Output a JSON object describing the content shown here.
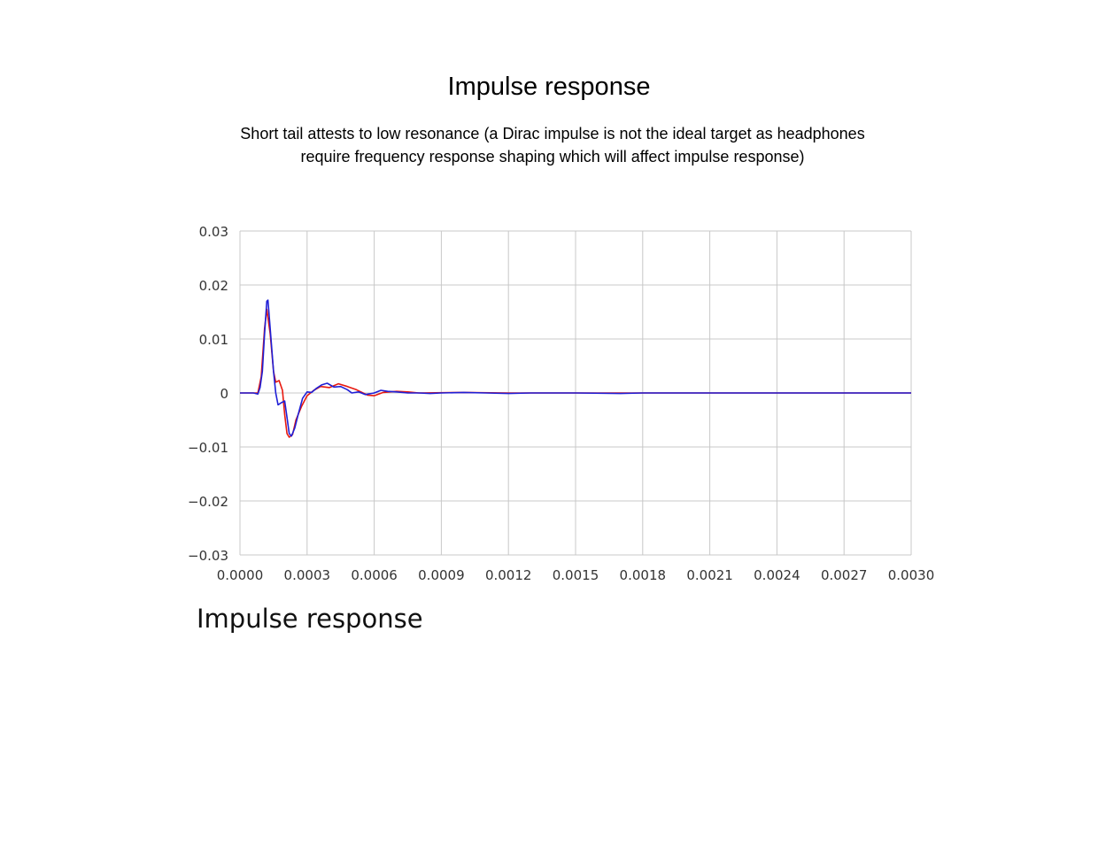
{
  "page": {
    "title": "Impulse response",
    "subtitle": "Short tail attests to low resonance (a Dirac impulse is not the ideal target as headphones require frequency response shaping which will affect impulse response)"
  },
  "chart_data": {
    "type": "line",
    "title": "Impulse response",
    "xlabel": "",
    "ylabel": "",
    "xlim": [
      0,
      0.003
    ],
    "ylim": [
      -0.03,
      0.03
    ],
    "x_ticks": [
      "0.0000",
      "0.0003",
      "0.0006",
      "0.0009",
      "0.0012",
      "0.0015",
      "0.0018",
      "0.0021",
      "0.0024",
      "0.0027",
      "0.0030"
    ],
    "y_ticks": [
      "0.03",
      "0.02",
      "0.01",
      "0",
      "−0.01",
      "−0.02",
      "−0.03"
    ],
    "grid": true,
    "legend": "none",
    "series": [
      {
        "color": "#e8190f",
        "points": [
          [
            0,
            0
          ],
          [
            8e-05,
            0
          ],
          [
            9.5e-05,
            0.003
          ],
          [
            0.00011,
            0.012
          ],
          [
            0.00012,
            0.0155
          ],
          [
            0.000135,
            0.011
          ],
          [
            0.00015,
            0.004
          ],
          [
            0.00016,
            0.002
          ],
          [
            0.000175,
            0.0023
          ],
          [
            0.00019,
            0.0005
          ],
          [
            0.0002,
            -0.004
          ],
          [
            0.00021,
            -0.0075
          ],
          [
            0.00022,
            -0.0082
          ],
          [
            0.000235,
            -0.0077
          ],
          [
            0.00025,
            -0.005
          ],
          [
            0.000275,
            -0.0025
          ],
          [
            0.0003,
            -0.0005
          ],
          [
            0.00033,
            0.0005
          ],
          [
            0.00036,
            0.0012
          ],
          [
            0.0004,
            0.001
          ],
          [
            0.00044,
            0.0017
          ],
          [
            0.00048,
            0.0012
          ],
          [
            0.00052,
            0.0006
          ],
          [
            0.00057,
            -0.0004
          ],
          [
            0.0006,
            -0.0005
          ],
          [
            0.00064,
            0.0001
          ],
          [
            0.0007,
            0.0003
          ],
          [
            0.00075,
            0.0002
          ],
          [
            0.0008,
            0
          ],
          [
            0.001,
            0.0001
          ],
          [
            0.0012,
            0
          ],
          [
            0.0015,
            0
          ],
          [
            0.0018,
            0
          ],
          [
            0.0021,
            0
          ],
          [
            0.0024,
            0
          ],
          [
            0.0027,
            0
          ],
          [
            0.003,
            0
          ]
        ]
      },
      {
        "color": "#1f1fd6",
        "points": [
          [
            0,
            0
          ],
          [
            6e-05,
            0
          ],
          [
            8e-05,
            -0.0002
          ],
          [
            9e-05,
            0.001
          ],
          [
            0.0001,
            0.004
          ],
          [
            0.00011,
            0.011
          ],
          [
            0.00012,
            0.017
          ],
          [
            0.000125,
            0.0172
          ],
          [
            0.000135,
            0.012
          ],
          [
            0.00015,
            0.004
          ],
          [
            0.00016,
            0
          ],
          [
            0.00017,
            -0.0022
          ],
          [
            0.000185,
            -0.0018
          ],
          [
            0.0002,
            -0.0015
          ],
          [
            0.00021,
            -0.0045
          ],
          [
            0.00022,
            -0.0075
          ],
          [
            0.00023,
            -0.008
          ],
          [
            0.000245,
            -0.0065
          ],
          [
            0.00026,
            -0.004
          ],
          [
            0.00028,
            -0.001
          ],
          [
            0.0003,
            0.0002
          ],
          [
            0.00032,
            0.0001
          ],
          [
            0.00034,
            0.0008
          ],
          [
            0.000365,
            0.0015
          ],
          [
            0.00039,
            0.0018
          ],
          [
            0.00042,
            0.0011
          ],
          [
            0.00045,
            0.0012
          ],
          [
            0.00048,
            0.0006
          ],
          [
            0.0005,
            0
          ],
          [
            0.00053,
            0.0002
          ],
          [
            0.00056,
            -0.0003
          ],
          [
            0.0006,
            0
          ],
          [
            0.00063,
            0.0005
          ],
          [
            0.00066,
            0.0003
          ],
          [
            0.0007,
            0.0002
          ],
          [
            0.00075,
            0
          ],
          [
            0.0008,
            0
          ],
          [
            0.00085,
            -0.0001
          ],
          [
            0.0009,
            0
          ],
          [
            0.001,
            0.0001
          ],
          [
            0.0011,
            0
          ],
          [
            0.0012,
            -0.0001
          ],
          [
            0.0013,
            0
          ],
          [
            0.0015,
            0
          ],
          [
            0.0017,
            -0.0001
          ],
          [
            0.0018,
            0
          ],
          [
            0.0021,
            0
          ],
          [
            0.0024,
            0
          ],
          [
            0.0027,
            0
          ],
          [
            0.003,
            0
          ]
        ]
      }
    ]
  }
}
